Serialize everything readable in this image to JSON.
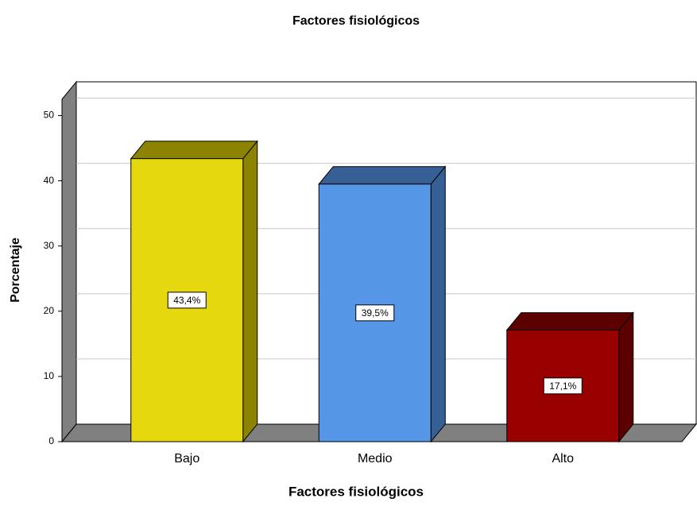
{
  "chart_data": {
    "type": "bar3d",
    "title": "Factores fisiológicos",
    "x_label": "Factores fisiológicos",
    "y_label": "Porcentaje",
    "categories": [
      "Bajo",
      "Medio",
      "Alto"
    ],
    "values": [
      43.4,
      39.5,
      17.1
    ],
    "value_labels": [
      "43,4%",
      "39,5%",
      "17,1%"
    ],
    "colors": [
      "#e5d80f",
      "#5596e6",
      "#990000"
    ],
    "side_colors": [
      "#8c8400",
      "#365f95",
      "#5c0000"
    ],
    "ylim": [
      0,
      52.5
    ],
    "yticks": [
      0,
      10,
      20,
      30,
      40,
      50
    ],
    "grid": true
  }
}
